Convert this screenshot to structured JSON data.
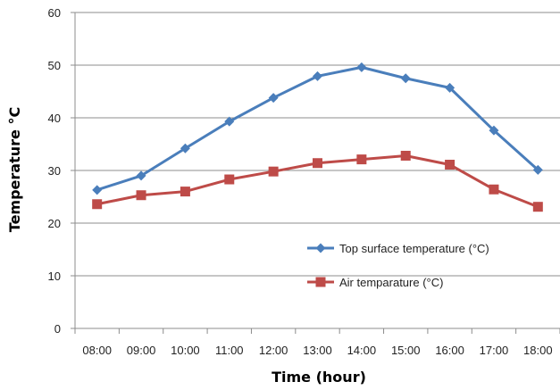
{
  "chart_data": {
    "type": "line",
    "categories": [
      "08:00",
      "09:00",
      "10:00",
      "11:00",
      "12:00",
      "13:00",
      "14:00",
      "15:00",
      "16:00",
      "17:00",
      "18:00"
    ],
    "series": [
      {
        "name": "Top surface temperature (°C)",
        "values": [
          26.3,
          29.0,
          34.2,
          39.3,
          43.8,
          47.9,
          49.6,
          47.5,
          45.7,
          37.6,
          30.1
        ],
        "color": "#4a7ebb",
        "marker": "diamond"
      },
      {
        "name": "Air temparature (°C)",
        "values": [
          23.6,
          25.3,
          26.0,
          28.3,
          29.8,
          31.4,
          32.1,
          32.8,
          31.1,
          26.4,
          23.1
        ],
        "color": "#be4b48",
        "marker": "square"
      }
    ],
    "xlabel": "Time (hour)",
    "ylabel": "Temperature °C",
    "ylim": [
      0,
      60
    ],
    "yticks": [
      0,
      10,
      20,
      30,
      40,
      50,
      60
    ],
    "grid": true,
    "legend_position": "center-right"
  }
}
